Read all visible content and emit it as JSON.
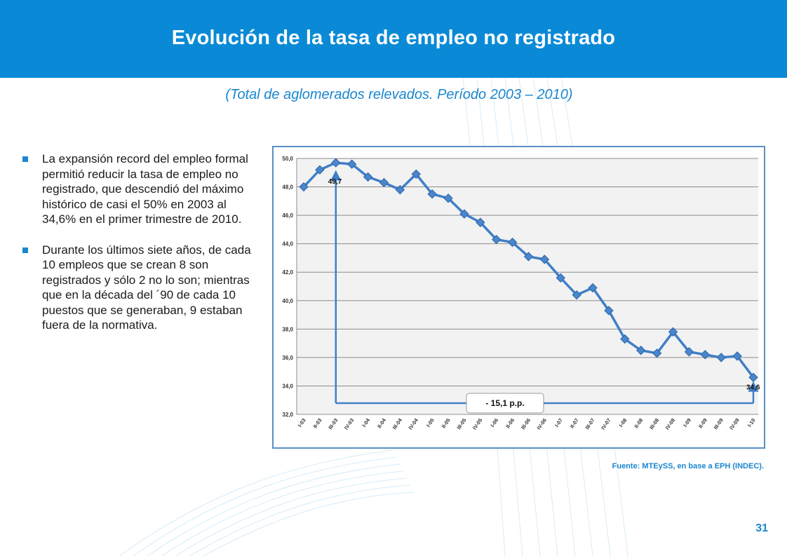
{
  "slide": {
    "title": "Evolución de la tasa de empleo no registrado",
    "subtitle": "(Total de aglomerados relevados. Período 2003 – 2010)",
    "bullets": [
      "La expansión record del empleo formal permitió reducir la tasa de empleo no registrado, que descendió del máximo histórico de casi el 50% en 2003 al 34,6% en el primer trimestre de 2010.",
      "Durante los últimos siete años, de cada 10 empleos que se crean 8 son registrados y sólo 2 no lo son; mientras que en la década del ´90 de cada 10 puestos que se generaban, 9 estaban fuera de la normativa."
    ],
    "source": "Fuente: MTEySS, en base a EPH (INDEC).",
    "page_number": "31",
    "colors": {
      "header": "#0a8ad6",
      "accent": "#1a86cf",
      "series": "#3f7fc8",
      "plot_bg": "#f2f2f2",
      "frame": "#5a8fc6"
    }
  },
  "chart_data": {
    "type": "line",
    "title": "",
    "xlabel": "",
    "ylabel": "",
    "ylim": [
      32,
      50
    ],
    "yticks": [
      "32,0",
      "34,0",
      "36,0",
      "38,0",
      "40,0",
      "42,0",
      "44,0",
      "46,0",
      "48,0",
      "50,0"
    ],
    "grid": true,
    "categories": [
      "I-03",
      "II-03",
      "III-03",
      "IV-03",
      "I-04",
      "II-04",
      "III-04",
      "IV-04",
      "I-05",
      "II-05",
      "III-05",
      "IV-05",
      "I-06",
      "II-06",
      "III-06",
      "IV-06",
      "I-07",
      "II-07",
      "III-07",
      "IV-07",
      "I-08",
      "II-08",
      "III-08",
      "IV-08",
      "I-09",
      "II-09",
      "III-09",
      "IV-09",
      "I-10"
    ],
    "series": [
      {
        "values": [
          48.0,
          49.2,
          49.7,
          49.6,
          48.7,
          48.3,
          47.8,
          48.9,
          47.5,
          47.2,
          46.1,
          45.5,
          44.3,
          44.1,
          43.1,
          42.9,
          41.6,
          40.4,
          40.9,
          39.3,
          37.3,
          36.5,
          36.3,
          37.8,
          36.4,
          36.2,
          36.0,
          36.1,
          34.6
        ]
      }
    ],
    "annotations": {
      "start_label": "49,7",
      "end_label": "34,6",
      "difference_label": "- 15,1 p.p."
    }
  }
}
